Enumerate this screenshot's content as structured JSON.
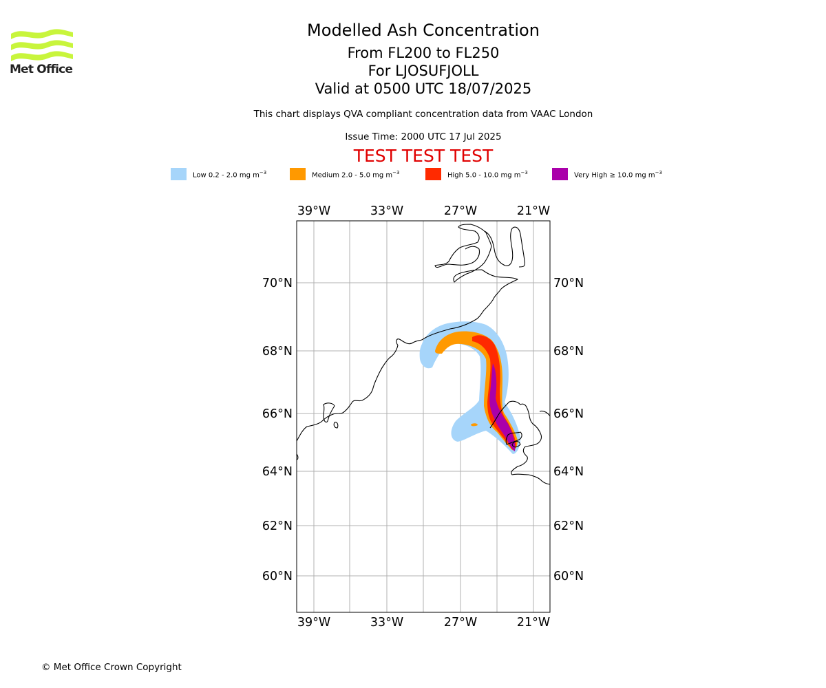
{
  "header": {
    "title": "Modelled Ash Concentration",
    "flight_levels": "From FL200 to FL250",
    "volcano": "For LJOSUFJOLL",
    "valid_time": "Valid at 0500 UTC 18/07/2025",
    "description": "This chart displays QVA compliant concentration data from VAAC London",
    "issue_time": "Issue Time: 2000 UTC 17 Jul 2025",
    "test_banner": "TEST TEST TEST"
  },
  "logo": {
    "text": "Met Office",
    "color": "#c8f53c"
  },
  "legend": [
    {
      "label": "Low 0.2 - 2.0 mg m",
      "unit_exp": "−3",
      "color": "#a6d5fa"
    },
    {
      "label": "Medium 2.0 - 5.0 mg m",
      "unit_exp": "−3",
      "color": "#ff9900"
    },
    {
      "label": "High 5.0 - 10.0 mg m",
      "unit_exp": "−3",
      "color": "#ff2a00"
    },
    {
      "label": "Very High  ≥  10.0 mg m",
      "unit_exp": "−3",
      "color": "#aa00aa"
    }
  ],
  "map": {
    "lon_ticks": [
      "39°W",
      "33°W",
      "27°W",
      "21°W"
    ],
    "lat_ticks": [
      "70°N",
      "68°N",
      "66°N",
      "64°N",
      "62°N",
      "60°N"
    ],
    "gridlines": true,
    "coastline_color": "#000000",
    "gridline_color": "#b0b0b0"
  },
  "footer": {
    "copyright": "© Met Office Crown Copyright"
  }
}
